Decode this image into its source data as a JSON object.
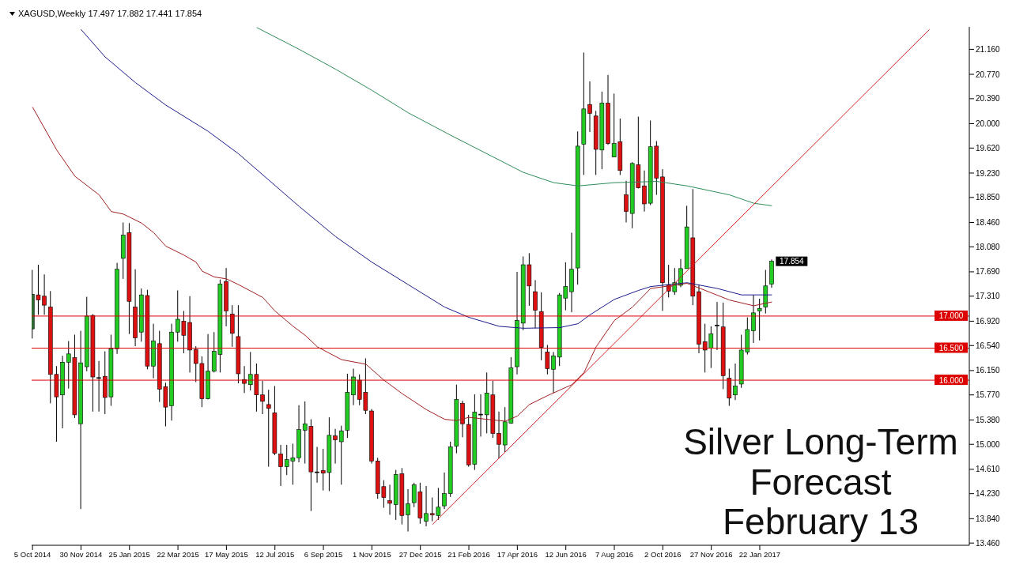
{
  "chart_data": {
    "type": "candlestick",
    "title": "XAGUSD,Weekly  17.497 17.882 17.441 17.854",
    "annotations": [
      "Silver Long-Term Forecast February 13",
      {
        "text": "17.854",
        "x": "2017-02-05",
        "y": 17.854
      }
    ],
    "x": [
      "2014-10-05",
      "2014-10-12",
      "2014-10-19",
      "2014-10-26",
      "2014-11-02",
      "2014-11-09",
      "2014-11-16",
      "2014-11-23",
      "2014-11-30",
      "2014-12-07",
      "2014-12-14",
      "2014-12-21",
      "2014-12-28",
      "2015-01-04",
      "2015-01-11",
      "2015-01-18",
      "2015-01-25",
      "2015-02-01",
      "2015-02-08",
      "2015-02-15",
      "2015-02-22",
      "2015-03-01",
      "2015-03-08",
      "2015-03-15",
      "2015-03-22",
      "2015-03-29",
      "2015-04-05",
      "2015-04-12",
      "2015-04-19",
      "2015-04-26",
      "2015-05-03",
      "2015-05-10",
      "2015-05-17",
      "2015-05-24",
      "2015-05-31",
      "2015-06-07",
      "2015-06-14",
      "2015-06-21",
      "2015-06-28",
      "2015-07-05",
      "2015-07-12",
      "2015-07-19",
      "2015-07-26",
      "2015-08-02",
      "2015-08-09",
      "2015-08-16",
      "2015-08-23",
      "2015-08-30",
      "2015-09-06",
      "2015-09-13",
      "2015-09-20",
      "2015-09-27",
      "2015-10-04",
      "2015-10-11",
      "2015-10-18",
      "2015-10-25",
      "2015-11-01",
      "2015-11-08",
      "2015-11-15",
      "2015-11-22",
      "2015-11-29",
      "2015-12-06",
      "2015-12-13",
      "2015-12-20",
      "2015-12-27",
      "2016-01-03",
      "2016-01-10",
      "2016-01-17",
      "2016-01-24",
      "2016-01-31",
      "2016-02-07",
      "2016-02-14",
      "2016-02-21",
      "2016-02-28",
      "2016-03-06",
      "2016-03-13",
      "2016-03-20",
      "2016-03-27",
      "2016-04-03",
      "2016-04-10",
      "2016-04-17",
      "2016-04-24",
      "2016-05-01",
      "2016-05-08",
      "2016-05-15",
      "2016-05-22",
      "2016-05-29",
      "2016-06-05",
      "2016-06-12",
      "2016-06-19",
      "2016-06-26",
      "2016-07-03",
      "2016-07-10",
      "2016-07-17",
      "2016-07-24",
      "2016-07-31",
      "2016-08-07",
      "2016-08-14",
      "2016-08-21",
      "2016-08-28",
      "2016-09-04",
      "2016-09-11",
      "2016-09-18",
      "2016-09-25",
      "2016-10-02",
      "2016-10-09",
      "2016-10-16",
      "2016-10-23",
      "2016-10-30",
      "2016-11-06",
      "2016-11-13",
      "2016-11-20",
      "2016-11-27",
      "2016-12-04",
      "2016-12-11",
      "2016-12-18",
      "2016-12-25",
      "2017-01-01",
      "2017-01-08",
      "2017-01-15",
      "2017-01-22",
      "2017-01-29",
      "2017-02-05"
    ],
    "ohlc": [
      [
        16.8,
        17.72,
        16.65,
        17.34
      ],
      [
        17.33,
        17.8,
        17.02,
        17.25
      ],
      [
        17.31,
        17.65,
        17.02,
        17.17
      ],
      [
        17.14,
        17.39,
        15.64,
        16.09
      ],
      [
        16.09,
        16.22,
        15.04,
        15.74
      ],
      [
        15.77,
        16.38,
        15.25,
        16.28
      ],
      [
        16.28,
        16.61,
        15.87,
        16.41
      ],
      [
        16.35,
        16.71,
        15.41,
        15.46
      ],
      [
        15.32,
        16.77,
        13.99,
        16.27
      ],
      [
        16.21,
        17.3,
        16.14,
        17.0
      ],
      [
        17.01,
        17.03,
        15.51,
        16.05
      ],
      [
        16.04,
        16.3,
        15.51,
        16.04
      ],
      [
        16.06,
        16.45,
        15.47,
        15.73
      ],
      [
        15.74,
        16.71,
        15.6,
        16.49
      ],
      [
        16.49,
        17.83,
        16.41,
        17.73
      ],
      [
        17.9,
        18.46,
        17.58,
        18.26
      ],
      [
        18.3,
        18.45,
        16.72,
        17.23
      ],
      [
        17.14,
        17.73,
        16.53,
        16.66
      ],
      [
        16.75,
        17.43,
        16.6,
        17.33
      ],
      [
        17.32,
        17.41,
        16.17,
        16.22
      ],
      [
        16.22,
        16.88,
        16.03,
        16.61
      ],
      [
        16.57,
        16.77,
        15.66,
        15.86
      ],
      [
        15.9,
        15.96,
        15.28,
        15.58
      ],
      [
        15.6,
        16.88,
        15.37,
        16.75
      ],
      [
        16.75,
        17.4,
        16.6,
        16.95
      ],
      [
        16.92,
        17.08,
        16.42,
        16.7
      ],
      [
        16.9,
        17.31,
        16.12,
        16.47
      ],
      [
        16.48,
        16.53,
        15.97,
        16.26
      ],
      [
        16.26,
        16.37,
        15.58,
        15.71
      ],
      [
        15.71,
        16.72,
        15.7,
        16.14
      ],
      [
        16.14,
        16.75,
        16.12,
        16.45
      ],
      [
        16.4,
        17.57,
        16.12,
        17.5
      ],
      [
        17.54,
        17.75,
        16.84,
        17.08
      ],
      [
        17.03,
        17.17,
        16.52,
        16.73
      ],
      [
        16.68,
        17.17,
        15.95,
        16.1
      ],
      [
        16.01,
        16.22,
        15.8,
        15.95
      ],
      [
        15.93,
        16.44,
        15.84,
        16.09
      ],
      [
        16.09,
        16.26,
        15.51,
        15.77
      ],
      [
        15.77,
        15.99,
        15.47,
        15.67
      ],
      [
        15.62,
        15.85,
        14.65,
        15.56
      ],
      [
        15.49,
        15.91,
        14.83,
        14.86
      ],
      [
        14.85,
        14.99,
        14.35,
        14.65
      ],
      [
        14.65,
        14.99,
        14.52,
        14.76
      ],
      [
        14.74,
        15.01,
        14.37,
        14.79
      ],
      [
        14.79,
        15.61,
        14.72,
        15.23
      ],
      [
        15.22,
        15.67,
        14.7,
        15.32
      ],
      [
        15.28,
        15.39,
        13.96,
        14.57
      ],
      [
        14.57,
        14.96,
        14.4,
        14.57
      ],
      [
        14.59,
        14.93,
        14.28,
        14.55
      ],
      [
        14.56,
        15.42,
        14.27,
        15.14
      ],
      [
        15.13,
        15.24,
        14.7,
        15.07
      ],
      [
        15.04,
        15.29,
        14.37,
        15.21
      ],
      [
        15.22,
        16.1,
        15.1,
        15.81
      ],
      [
        15.77,
        16.18,
        15.61,
        16.05
      ],
      [
        16.0,
        16.09,
        15.61,
        15.7
      ],
      [
        15.81,
        16.34,
        15.47,
        15.53
      ],
      [
        15.52,
        15.55,
        14.7,
        14.74
      ],
      [
        14.74,
        14.79,
        14.15,
        14.23
      ],
      [
        14.34,
        14.44,
        14.01,
        14.17
      ],
      [
        14.12,
        14.37,
        13.9,
        14.08
      ],
      [
        14.06,
        14.6,
        13.82,
        14.53
      ],
      [
        14.54,
        14.63,
        13.75,
        13.89
      ],
      [
        13.9,
        14.3,
        13.64,
        14.07
      ],
      [
        14.09,
        14.4,
        14.02,
        14.37
      ],
      [
        14.26,
        14.4,
        13.76,
        13.85
      ],
      [
        13.8,
        14.35,
        13.72,
        13.92
      ],
      [
        13.92,
        14.17,
        13.8,
        13.9
      ],
      [
        13.89,
        14.32,
        13.82,
        14.02
      ],
      [
        14.04,
        14.56,
        13.99,
        14.23
      ],
      [
        14.23,
        15.04,
        14.18,
        14.96
      ],
      [
        14.97,
        15.93,
        14.86,
        15.7
      ],
      [
        15.64,
        15.68,
        15.11,
        15.32
      ],
      [
        15.31,
        15.46,
        14.65,
        14.68
      ],
      [
        14.69,
        15.78,
        14.6,
        15.5
      ],
      [
        15.47,
        15.78,
        15.12,
        15.47
      ],
      [
        15.46,
        16.12,
        15.17,
        15.8
      ],
      [
        15.77,
        15.99,
        15.1,
        15.17
      ],
      [
        15.17,
        15.51,
        14.78,
        15.0
      ],
      [
        14.99,
        15.58,
        14.88,
        15.35
      ],
      [
        15.33,
        16.36,
        15.32,
        16.19
      ],
      [
        16.21,
        17.69,
        16.09,
        16.93
      ],
      [
        16.89,
        17.93,
        16.78,
        17.8
      ],
      [
        17.8,
        17.98,
        17.16,
        17.47
      ],
      [
        17.38,
        17.56,
        16.81,
        17.09
      ],
      [
        17.07,
        17.37,
        16.31,
        16.51
      ],
      [
        16.44,
        16.55,
        16.09,
        16.18
      ],
      [
        16.17,
        16.44,
        15.8,
        16.38
      ],
      [
        16.36,
        17.36,
        16.22,
        17.33
      ],
      [
        17.28,
        17.84,
        17.09,
        17.46
      ],
      [
        17.38,
        18.3,
        17.06,
        17.73
      ],
      [
        17.75,
        19.88,
        17.49,
        19.65
      ],
      [
        19.68,
        21.11,
        19.2,
        20.23
      ],
      [
        20.3,
        20.66,
        19.87,
        20.16
      ],
      [
        20.12,
        20.2,
        19.2,
        19.6
      ],
      [
        19.59,
        20.5,
        19.29,
        20.32
      ],
      [
        20.32,
        20.76,
        19.67,
        19.69
      ],
      [
        19.48,
        20.47,
        19.48,
        19.69
      ],
      [
        19.72,
        20.08,
        19.2,
        19.27
      ],
      [
        18.89,
        19.11,
        18.46,
        18.63
      ],
      [
        18.6,
        19.4,
        18.37,
        19.38
      ],
      [
        19.36,
        20.11,
        18.99,
        19.0
      ],
      [
        19.03,
        19.27,
        18.63,
        18.75
      ],
      [
        18.76,
        20.05,
        18.73,
        19.64
      ],
      [
        19.65,
        19.73,
        18.89,
        19.15
      ],
      [
        19.17,
        19.29,
        17.08,
        17.52
      ],
      [
        17.49,
        17.8,
        17.29,
        17.39
      ],
      [
        17.38,
        17.75,
        17.33,
        17.52
      ],
      [
        17.48,
        17.89,
        17.45,
        17.74
      ],
      [
        17.74,
        18.72,
        17.74,
        18.39
      ],
      [
        18.22,
        18.98,
        17.17,
        17.31
      ],
      [
        17.38,
        17.49,
        16.42,
        16.56
      ],
      [
        16.6,
        16.88,
        16.12,
        16.47
      ],
      [
        16.5,
        16.84,
        16.19,
        16.72
      ],
      [
        16.86,
        17.22,
        16.47,
        16.86
      ],
      [
        16.83,
        17.21,
        15.86,
        16.07
      ],
      [
        16.03,
        16.18,
        15.6,
        15.72
      ],
      [
        15.77,
        16.26,
        15.69,
        15.91
      ],
      [
        15.94,
        16.71,
        15.88,
        16.47
      ],
      [
        16.44,
        16.98,
        16.4,
        16.79
      ],
      [
        16.77,
        17.33,
        16.58,
        17.05
      ],
      [
        17.08,
        17.27,
        16.62,
        17.12
      ],
      [
        17.14,
        17.72,
        17.04,
        17.47
      ],
      [
        17.497,
        17.882,
        17.441,
        17.854
      ]
    ],
    "colors": [
      "#2e6b2e",
      "#dd1111",
      "#dd1111",
      "#dd1111",
      "#dd1111",
      "#22cc22",
      "#22cc22",
      "#dd1111",
      "#22cc22",
      "#22cc22",
      "#dd1111",
      "#000000",
      "#dd1111",
      "#22cc22",
      "#22cc22",
      "#22cc22",
      "#dd1111",
      "#dd1111",
      "#22cc22",
      "#dd1111",
      "#22cc22",
      "#dd1111",
      "#dd1111",
      "#22cc22",
      "#22cc22",
      "#dd1111",
      "#dd1111",
      "#dd1111",
      "#dd1111",
      "#22cc22",
      "#22cc22",
      "#22cc22",
      "#dd1111",
      "#dd1111",
      "#dd1111",
      "#dd1111",
      "#22cc22",
      "#dd1111",
      "#dd1111",
      "#dd1111",
      "#dd1111",
      "#dd1111",
      "#22cc22",
      "#22cc22",
      "#22cc22",
      "#22cc22",
      "#dd1111",
      "#000000",
      "#dd1111",
      "#22cc22",
      "#dd1111",
      "#22cc22",
      "#22cc22",
      "#22cc22",
      "#dd1111",
      "#dd1111",
      "#dd1111",
      "#dd1111",
      "#dd1111",
      "#dd1111",
      "#22cc22",
      "#dd1111",
      "#22cc22",
      "#22cc22",
      "#dd1111",
      "#22cc22",
      "#dd1111",
      "#22cc22",
      "#22cc22",
      "#22cc22",
      "#22cc22",
      "#dd1111",
      "#dd1111",
      "#22cc22",
      "#000000",
      "#22cc22",
      "#dd1111",
      "#dd1111",
      "#22cc22",
      "#22cc22",
      "#22cc22",
      "#22cc22",
      "#dd1111",
      "#dd1111",
      "#dd1111",
      "#dd1111",
      "#22cc22",
      "#22cc22",
      "#22cc22",
      "#22cc22",
      "#22cc22",
      "#22cc22",
      "#dd1111",
      "#dd1111",
      "#22cc22",
      "#dd1111",
      "#22cc22",
      "#dd1111",
      "#dd1111",
      "#22cc22",
      "#dd1111",
      "#dd1111",
      "#22cc22",
      "#dd1111",
      "#dd1111",
      "#dd1111",
      "#22cc22",
      "#22cc22",
      "#22cc22",
      "#dd1111",
      "#dd1111",
      "#dd1111",
      "#22cc22",
      "#000000",
      "#dd1111",
      "#dd1111",
      "#22cc22",
      "#22cc22",
      "#22cc22",
      "#22cc22",
      "#22cc22",
      "#22cc22",
      "#22cc22"
    ],
    "series": [
      {
        "type": "line",
        "color": "#1c1c8c",
        "x": [
          "2014-11-30",
          "2014-12-28",
          "2015-02-01",
          "2015-03-08",
          "2015-04-26",
          "2015-05-31",
          "2015-07-05",
          "2015-08-09",
          "2015-09-20",
          "2015-11-01",
          "2015-12-13",
          "2016-01-24",
          "2016-02-21",
          "2016-03-27",
          "2016-04-24",
          "2016-06-05",
          "2016-06-26",
          "2016-07-10",
          "2016-08-07",
          "2016-09-04",
          "2016-09-18",
          "2016-10-30",
          "2016-12-04",
          "2017-01-01",
          "2017-02-05"
        ],
        "values": [
          21.47,
          21.04,
          20.64,
          20.29,
          19.88,
          19.53,
          19.12,
          18.71,
          18.24,
          17.84,
          17.49,
          17.14,
          16.98,
          16.84,
          16.81,
          16.82,
          16.88,
          17.02,
          17.26,
          17.4,
          17.46,
          17.52,
          17.43,
          17.33,
          17.33
        ]
      },
      {
        "type": "line",
        "color": "#a02020",
        "x": [
          "2014-10-05",
          "2014-11-02",
          "2014-11-23",
          "2014-12-21",
          "2015-01-04",
          "2015-01-18",
          "2015-02-08",
          "2015-02-22",
          "2015-03-08",
          "2015-03-29",
          "2015-04-12",
          "2015-04-19",
          "2015-05-03",
          "2015-05-17",
          "2015-05-31",
          "2015-06-28",
          "2015-07-12",
          "2015-08-02",
          "2015-08-16",
          "2015-08-30",
          "2015-09-27",
          "2015-10-25",
          "2015-11-15",
          "2015-12-06",
          "2016-01-03",
          "2016-01-24",
          "2016-02-07",
          "2016-02-21",
          "2016-03-13",
          "2016-04-03",
          "2016-04-17",
          "2016-05-01",
          "2016-05-22",
          "2016-06-19",
          "2016-07-03",
          "2016-07-17",
          "2016-08-07",
          "2016-08-28",
          "2016-09-18",
          "2016-10-30",
          "2016-11-20",
          "2016-12-18",
          "2017-01-15",
          "2017-02-05"
        ],
        "values": [
          20.26,
          19.59,
          19.18,
          18.89,
          18.63,
          18.59,
          18.45,
          18.3,
          18.09,
          17.95,
          17.84,
          17.7,
          17.61,
          17.58,
          17.49,
          17.29,
          17.08,
          16.84,
          16.7,
          16.52,
          16.32,
          16.25,
          16.0,
          15.79,
          15.54,
          15.39,
          15.37,
          15.42,
          15.39,
          15.36,
          15.44,
          15.62,
          15.76,
          15.93,
          16.12,
          16.52,
          16.93,
          17.14,
          17.43,
          17.51,
          17.4,
          17.25,
          17.16,
          17.22
        ]
      },
      {
        "type": "line",
        "color": "#2e8b57",
        "x": [
          "2015-06-21",
          "2015-08-09",
          "2015-09-20",
          "2015-11-01",
          "2015-12-13",
          "2016-01-31",
          "2016-03-13",
          "2016-04-24",
          "2016-05-29",
          "2016-06-26",
          "2016-08-07",
          "2016-09-25",
          "2016-10-30",
          "2016-11-20",
          "2016-12-18",
          "2017-01-15",
          "2017-02-05"
        ],
        "values": [
          21.5,
          21.16,
          20.85,
          20.52,
          20.17,
          19.82,
          19.53,
          19.24,
          19.08,
          19.03,
          19.08,
          19.1,
          19.03,
          18.97,
          18.89,
          18.76,
          18.72
        ]
      },
      {
        "type": "line",
        "color": "#d42020",
        "x": [
          "2016-01-10",
          "2017-08-06"
        ],
        "values": [
          13.75,
          21.47
        ]
      }
    ],
    "ref_lines": [
      {
        "axis": "y",
        "value": 17.0,
        "label": "17.000",
        "color": "#dd0000"
      },
      {
        "axis": "y",
        "value": 16.5,
        "label": "16.500",
        "color": "#dd0000"
      },
      {
        "axis": "y",
        "value": 16.0,
        "label": "16.000",
        "color": "#dd0000"
      }
    ],
    "xlim": [
      "2014-10-04",
      "2017-09-21"
    ],
    "xticks": [
      {
        "value": "2014-10-05",
        "label": "5 Oct 2014"
      },
      {
        "value": "2014-11-30",
        "label": "30 Nov 2014"
      },
      {
        "value": "2015-01-25",
        "label": "25 Jan 2015"
      },
      {
        "value": "2015-03-22",
        "label": "22 Mar 2015"
      },
      {
        "value": "2015-05-17",
        "label": "17 May 2015"
      },
      {
        "value": "2015-07-12",
        "label": "12 Jul 2015"
      },
      {
        "value": "2015-09-06",
        "label": "6 Sep 2015"
      },
      {
        "value": "2015-11-01",
        "label": "1 Nov 2015"
      },
      {
        "value": "2015-12-27",
        "label": "27 Dec 2015"
      },
      {
        "value": "2016-02-21",
        "label": "21 Feb 2016"
      },
      {
        "value": "2016-04-17",
        "label": "17 Apr 2016"
      },
      {
        "value": "2016-06-12",
        "label": "12 Jun 2016"
      },
      {
        "value": "2016-08-07",
        "label": "7 Aug 2016"
      },
      {
        "value": "2016-10-02",
        "label": "2 Oct 2016"
      },
      {
        "value": "2016-11-27",
        "label": "27 Nov 2016"
      },
      {
        "value": "2017-01-22",
        "label": "22 Jan 2017"
      }
    ],
    "ylim": [
      13.425,
      21.51
    ],
    "yticks": [
      {
        "value": 13.46,
        "label": "13.460"
      },
      {
        "value": 13.84,
        "label": "13.840"
      },
      {
        "value": 14.23,
        "label": "14.230"
      },
      {
        "value": 14.61,
        "label": "14.610"
      },
      {
        "value": 15.0,
        "label": "15.000"
      },
      {
        "value": 15.38,
        "label": "15.380"
      },
      {
        "value": 15.77,
        "label": "15.770"
      },
      {
        "value": 16.15,
        "label": "16.150"
      },
      {
        "value": 16.54,
        "label": "16.540"
      },
      {
        "value": 16.92,
        "label": "16.920"
      },
      {
        "value": 17.31,
        "label": "17.310"
      },
      {
        "value": 17.69,
        "label": "17.690"
      },
      {
        "value": 18.08,
        "label": "18.080"
      },
      {
        "value": 18.46,
        "label": "18.460"
      },
      {
        "value": 18.85,
        "label": "18.850"
      },
      {
        "value": 19.23,
        "label": "19.230"
      },
      {
        "value": 19.62,
        "label": "19.620"
      },
      {
        "value": 20.0,
        "label": "20.000"
      },
      {
        "value": 20.39,
        "label": "20.390"
      },
      {
        "value": 20.77,
        "label": "20.770"
      },
      {
        "value": 21.16,
        "label": "21.160"
      }
    ]
  }
}
